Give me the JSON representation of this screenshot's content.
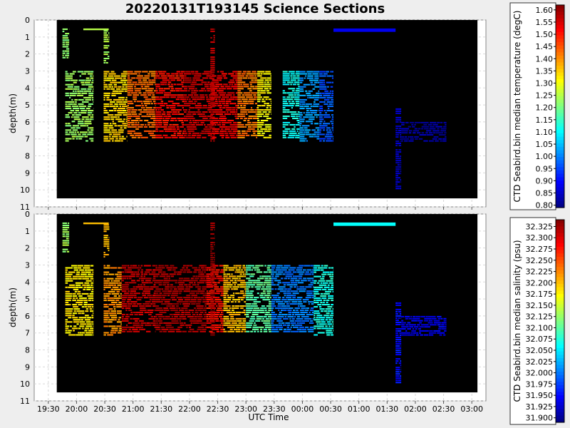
{
  "chart_data": {
    "title": "20220131T193145 Science Sections",
    "xlabel": "UTC Time",
    "x_ticks": [
      "19:30",
      "20:00",
      "20:30",
      "21:00",
      "21:30",
      "22:00",
      "22:30",
      "23:00",
      "23:30",
      "00:00",
      "00:30",
      "01:00",
      "01:30",
      "02:00",
      "02:30",
      "03:00"
    ],
    "panels": [
      {
        "type": "heatmap",
        "ylabel": "depth(m)",
        "y_ticks": [
          "0",
          "1",
          "2",
          "3",
          "4",
          "5",
          "6",
          "7",
          "8",
          "9",
          "10",
          "11"
        ],
        "ylim": [
          0,
          11
        ],
        "inverted_y": true,
        "colorbar_label": "CTD Seabird.bin median temperature (degC)",
        "colorbar_ticks": [
          "1.60",
          "1.55",
          "1.50",
          "1.45",
          "1.40",
          "1.35",
          "1.30",
          "1.25",
          "1.20",
          "1.15",
          "1.10",
          "1.05",
          "1.00",
          "0.95",
          "0.90",
          "0.85",
          "0.80"
        ],
        "colorbar_range": [
          0.79,
          1.62
        ],
        "sections": [
          {
            "t0": 19.75,
            "t1": 19.87,
            "d0": 0.5,
            "d1": 2.3,
            "value": 1.22
          },
          {
            "t0": 20.12,
            "t1": 20.57,
            "d0": 0.5,
            "d1": 0.6,
            "value": 1.25
          },
          {
            "t0": 20.48,
            "t1": 20.58,
            "d0": 0.6,
            "d1": 2.6,
            "value": 1.24
          },
          {
            "t0": 19.8,
            "t1": 20.3,
            "d0": 3.0,
            "d1": 7.2,
            "value": 1.23
          },
          {
            "t0": 20.48,
            "t1": 20.9,
            "d0": 3.0,
            "d1": 7.2,
            "value": 1.34
          },
          {
            "t0": 20.9,
            "t1": 21.4,
            "d0": 3.0,
            "d1": 7.0,
            "value": 1.43
          },
          {
            "t0": 21.4,
            "t1": 21.9,
            "d0": 3.0,
            "d1": 7.0,
            "value": 1.51
          },
          {
            "t0": 21.9,
            "t1": 22.4,
            "d0": 3.0,
            "d1": 7.0,
            "value": 1.56
          },
          {
            "t0": 22.4,
            "t1": 22.85,
            "d0": 3.0,
            "d1": 7.0,
            "value": 1.53
          },
          {
            "t0": 22.85,
            "t1": 23.2,
            "d0": 3.0,
            "d1": 7.0,
            "value": 1.42
          },
          {
            "t0": 23.2,
            "t1": 23.45,
            "d0": 3.0,
            "d1": 7.0,
            "value": 1.31
          },
          {
            "t0": 23.65,
            "t1": 23.95,
            "d0": 3.0,
            "d1": 7.0,
            "value": 1.11
          },
          {
            "t0": 23.95,
            "t1": 24.3,
            "d0": 3.0,
            "d1": 7.2,
            "value": 1.02
          },
          {
            "t0": 24.3,
            "t1": 24.55,
            "d0": 3.0,
            "d1": 7.2,
            "value": 0.96
          },
          {
            "t0": 22.37,
            "t1": 22.45,
            "d0": 0.5,
            "d1": 7.2,
            "value": 1.58
          },
          {
            "t0": 24.55,
            "t1": 25.65,
            "d0": 0.5,
            "d1": 0.7,
            "value": 0.88
          },
          {
            "t0": 25.65,
            "t1": 25.75,
            "d0": 5.2,
            "d1": 10.0,
            "value": 0.84
          },
          {
            "t0": 25.75,
            "t1": 26.55,
            "d0": 6.0,
            "d1": 7.2,
            "value": 0.82
          }
        ]
      },
      {
        "type": "heatmap",
        "ylabel": "depth(m)",
        "y_ticks": [
          "0",
          "1",
          "2",
          "3",
          "4",
          "5",
          "6",
          "7",
          "8",
          "9",
          "10",
          "11"
        ],
        "ylim": [
          0,
          11
        ],
        "inverted_y": true,
        "colorbar_label": "CTD Seabird.bin median salinity (psu)",
        "colorbar_ticks": [
          "32.325",
          "32.300",
          "32.275",
          "32.250",
          "32.225",
          "32.200",
          "32.175",
          "32.150",
          "32.125",
          "32.100",
          "32.075",
          "32.050",
          "32.025",
          "32.000",
          "31.975",
          "31.950",
          "31.925",
          "31.900"
        ],
        "colorbar_range": [
          31.89,
          32.34
        ],
        "sections": [
          {
            "t0": 19.75,
            "t1": 19.87,
            "d0": 0.5,
            "d1": 2.3,
            "value": 32.13
          },
          {
            "t0": 20.12,
            "t1": 20.57,
            "d0": 0.5,
            "d1": 0.6,
            "value": 32.2
          },
          {
            "t0": 20.48,
            "t1": 20.58,
            "d0": 0.6,
            "d1": 2.6,
            "value": 32.2
          },
          {
            "t0": 19.8,
            "t1": 20.3,
            "d0": 3.0,
            "d1": 7.2,
            "value": 32.18
          },
          {
            "t0": 20.48,
            "t1": 20.8,
            "d0": 3.0,
            "d1": 7.2,
            "value": 32.22
          },
          {
            "t0": 20.8,
            "t1": 21.4,
            "d0": 3.0,
            "d1": 7.0,
            "value": 32.31
          },
          {
            "t0": 21.4,
            "t1": 22.3,
            "d0": 3.0,
            "d1": 7.0,
            "value": 32.32
          },
          {
            "t0": 22.3,
            "t1": 22.6,
            "d0": 3.0,
            "d1": 7.0,
            "value": 32.28
          },
          {
            "t0": 22.6,
            "t1": 23.0,
            "d0": 3.0,
            "d1": 7.0,
            "value": 32.2
          },
          {
            "t0": 23.0,
            "t1": 23.45,
            "d0": 3.0,
            "d1": 7.0,
            "value": 32.1
          },
          {
            "t0": 23.45,
            "t1": 24.2,
            "d0": 3.0,
            "d1": 7.0,
            "value": 32.0
          },
          {
            "t0": 24.2,
            "t1": 24.55,
            "d0": 3.0,
            "d1": 7.2,
            "value": 32.07
          },
          {
            "t0": 22.37,
            "t1": 22.45,
            "d0": 0.5,
            "d1": 7.2,
            "value": 32.33
          },
          {
            "t0": 24.55,
            "t1": 25.65,
            "d0": 0.5,
            "d1": 0.7,
            "value": 32.06
          },
          {
            "t0": 25.65,
            "t1": 25.75,
            "d0": 5.2,
            "d1": 10.0,
            "value": 31.95
          },
          {
            "t0": 25.75,
            "t1": 26.55,
            "d0": 6.0,
            "d1": 7.2,
            "value": 31.94
          }
        ]
      }
    ]
  }
}
